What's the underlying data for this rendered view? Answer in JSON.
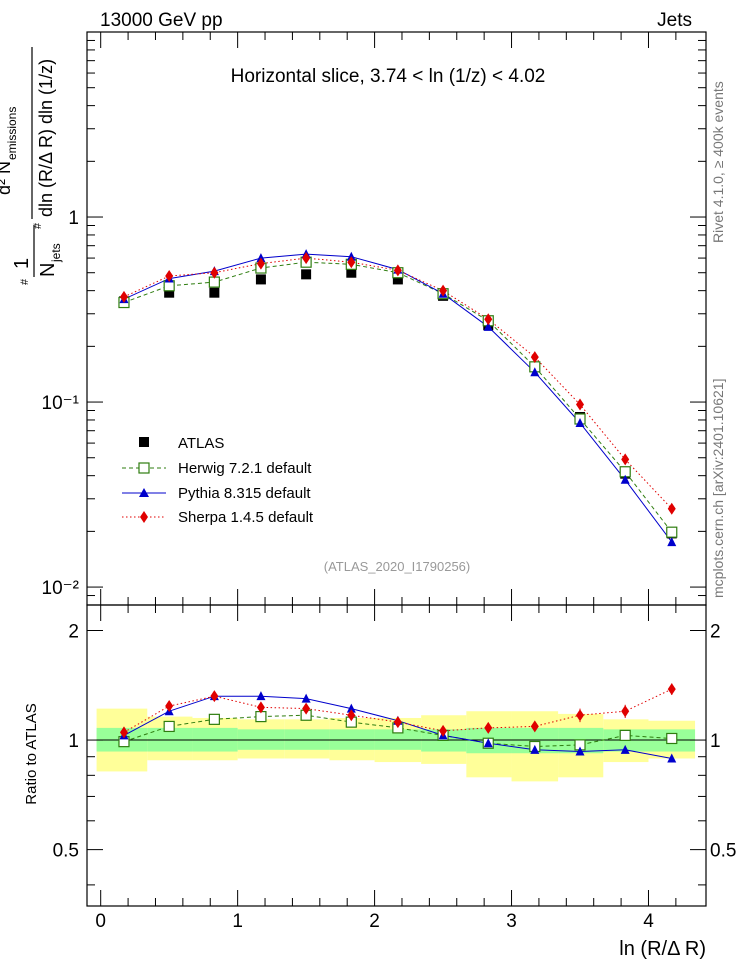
{
  "header": {
    "left_title": "13000 GeV pp",
    "right_title": "Jets",
    "slice_label": "Horizontal slice, 3.74 < ln (1/z) < 4.02",
    "analysis_id": "(ATLAS_2020_I1790256)",
    "side_text_top": "Rivet 4.1.0, ≥ 400k events",
    "side_text_bottom": "mcplots.cern.ch [arXiv:2401.10621]"
  },
  "colors": {
    "data": "#000000",
    "herwig": "#2e7d0f",
    "pythia": "#0000cc",
    "sherpa": "#e00000",
    "band_inner": "#99ff99",
    "band_outer": "#ffff99",
    "analysis_id": "#999999",
    "side_text": "#777777"
  },
  "chart_data": [
    {
      "type": "scatter",
      "title": "Horizontal slice, 3.74 < ln (1/z) < 4.02",
      "xlabel": "ln (R/Δ R)",
      "ylabel": "(1/N_jets) d²N_emissions / dln(R/ΔR) dln(1/z)",
      "ylabel_parts": {
        "one": "1",
        "njets": "N",
        "njets_sub": "jets",
        "d2": "d² N",
        "emissions_sub": "emissions",
        "denominator": "dln (R/Δ R) dln (1/z)"
      },
      "yscale": "log",
      "xlim": [
        -0.1,
        4.42
      ],
      "ylim": [
        0.008,
        10
      ],
      "y_ticks": [
        {
          "value": 0.01,
          "label": "10⁻²"
        },
        {
          "value": 0.1,
          "label": "10⁻¹"
        },
        {
          "value": 1,
          "label": "1"
        }
      ],
      "legend": [
        "ATLAS",
        "Herwig 7.2.1 default",
        "Pythia 8.315 default",
        "Sherpa 1.4.5 default"
      ],
      "x": [
        0.17,
        0.5,
        0.83,
        1.17,
        1.5,
        1.83,
        2.17,
        2.5,
        2.83,
        3.17,
        3.5,
        3.83,
        4.17
      ],
      "bin_edges": [
        0,
        0.34,
        0.67,
        1.0,
        1.34,
        1.67,
        2.0,
        2.34,
        2.67,
        3.0,
        3.34,
        3.67,
        4.0,
        4.34
      ],
      "series": [
        {
          "name": "ATLAS",
          "values": [
            0.35,
            0.39,
            0.39,
            0.46,
            0.49,
            0.5,
            0.46,
            0.375,
            0.26,
            0.155,
            0.083,
            0.041,
            0.0195
          ]
        },
        {
          "name": "Herwig 7.2.1 default",
          "values": [
            0.345,
            0.425,
            0.445,
            0.53,
            0.57,
            0.555,
            0.5,
            0.385,
            0.275,
            0.155,
            0.081,
            0.042,
            0.0198
          ]
        },
        {
          "name": "Pythia 8.315 default",
          "values": [
            0.36,
            0.465,
            0.51,
            0.6,
            0.63,
            0.61,
            0.52,
            0.385,
            0.255,
            0.145,
            0.077,
            0.038,
            0.0175
          ]
        },
        {
          "name": "Sherpa 1.4.5 default",
          "values": [
            0.37,
            0.48,
            0.5,
            0.56,
            0.6,
            0.57,
            0.515,
            0.4,
            0.28,
            0.175,
            0.097,
            0.049,
            0.0265
          ]
        }
      ]
    },
    {
      "type": "scatter",
      "xlabel": "ln (R/Δ R)",
      "ylabel": "Ratio to ATLAS",
      "xlim": [
        -0.1,
        4.42
      ],
      "ylim": [
        0.35,
        2.35
      ],
      "x_ticks": [
        0,
        1,
        2,
        3,
        4
      ],
      "y_ticks": [
        {
          "value": 0.5,
          "label": "0.5"
        },
        {
          "value": 1,
          "label": "1"
        },
        {
          "value": 2,
          "label": "2"
        }
      ],
      "x": [
        0.17,
        0.5,
        0.83,
        1.17,
        1.5,
        1.83,
        2.17,
        2.5,
        2.83,
        3.17,
        3.5,
        3.83,
        4.17
      ],
      "band_edges": [
        -0.03,
        0.34,
        0.67,
        1.0,
        1.34,
        1.67,
        2.0,
        2.34,
        2.67,
        3.0,
        3.34,
        3.67,
        4.0,
        4.34
      ],
      "band_inner_low": [
        0.93,
        0.93,
        0.93,
        0.94,
        0.94,
        0.94,
        0.94,
        0.93,
        0.92,
        0.92,
        0.92,
        0.93,
        0.93
      ],
      "band_inner_high": [
        1.08,
        1.08,
        1.08,
        1.07,
        1.07,
        1.07,
        1.07,
        1.07,
        1.08,
        1.08,
        1.08,
        1.07,
        1.07
      ],
      "band_outer_low": [
        0.82,
        0.88,
        0.88,
        0.89,
        0.89,
        0.88,
        0.87,
        0.86,
        0.79,
        0.77,
        0.79,
        0.87,
        0.89
      ],
      "band_outer_high": [
        1.22,
        1.16,
        1.15,
        1.14,
        1.14,
        1.15,
        1.15,
        1.17,
        1.2,
        1.2,
        1.18,
        1.14,
        1.13
      ],
      "series": [
        {
          "name": "Herwig 7.2.1 default",
          "values": [
            0.99,
            1.09,
            1.14,
            1.16,
            1.17,
            1.12,
            1.08,
            1.03,
            0.98,
            0.96,
            0.97,
            1.03,
            1.01
          ]
        },
        {
          "name": "Pythia 8.315 default",
          "values": [
            1.03,
            1.2,
            1.32,
            1.32,
            1.3,
            1.22,
            1.13,
            1.03,
            0.98,
            0.94,
            0.93,
            0.94,
            0.89
          ]
        },
        {
          "name": "Sherpa 1.4.5 default",
          "values": [
            1.05,
            1.24,
            1.32,
            1.23,
            1.22,
            1.17,
            1.12,
            1.06,
            1.08,
            1.09,
            1.17,
            1.2,
            1.38
          ]
        }
      ]
    }
  ]
}
